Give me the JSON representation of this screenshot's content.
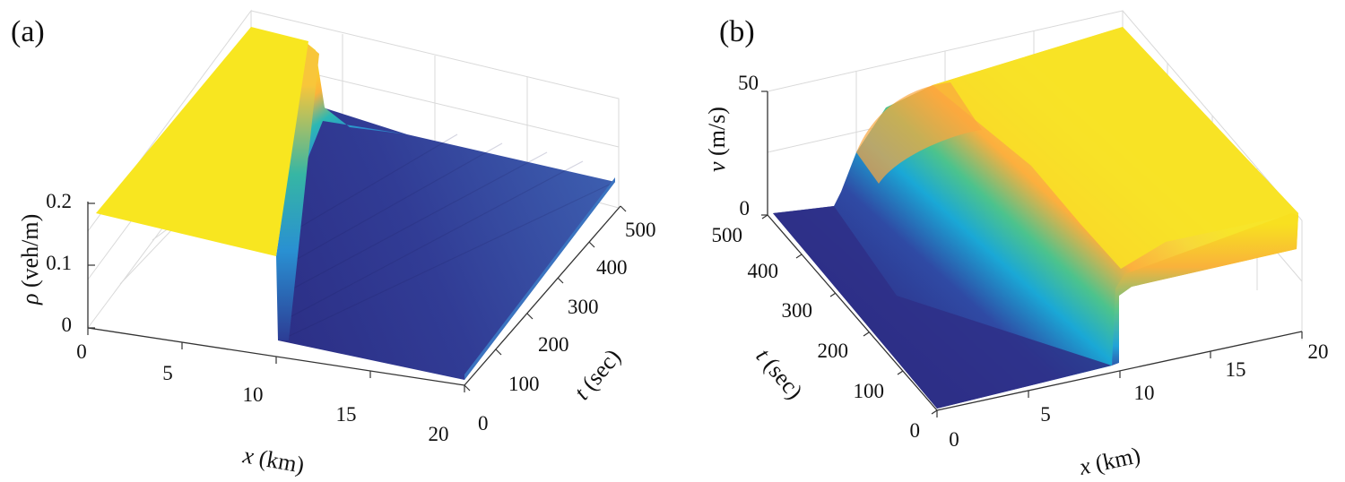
{
  "chart_data": [
    {
      "type": "surface3d",
      "panel_label": "(a)",
      "xlabel": {
        "sym": "x",
        "unit": " (km)"
      },
      "ylabel": {
        "sym": "t",
        "unit": " (sec)"
      },
      "zlabel": {
        "sym": "ρ",
        "unit": " (veh/m)"
      },
      "x_ticks": [
        "0",
        "5",
        "10",
        "15",
        "20"
      ],
      "t_ticks": [
        "0",
        "100",
        "200",
        "300",
        "400",
        "500"
      ],
      "z_ticks": [
        "0",
        "0.1",
        "0.2"
      ],
      "xlim": [
        0,
        20
      ],
      "tlim": [
        0,
        500
      ],
      "zlim": [
        0,
        0.2
      ],
      "surface": {
        "description_of_values": "density: 0.18 veh/m for x < ~10 km (queue), drops sharply at x ≈ 10 km to ≈0.01 veh/m downstream",
        "upstream_value": 0.18,
        "downstream_value": 0.01,
        "discontinuity_x": 10
      },
      "colors": {
        "high": "#f8e620",
        "low": "#2d3b8f"
      }
    },
    {
      "type": "surface3d",
      "panel_label": "(b)",
      "xlabel": {
        "sym": "x",
        "unit": " (km)"
      },
      "ylabel": {
        "sym": "t",
        "unit": " (sec)"
      },
      "zlabel": {
        "sym": "v",
        "unit": " (m/s)"
      },
      "x_ticks": [
        "0",
        "5",
        "10",
        "15",
        "20"
      ],
      "t_ticks": [
        "0",
        "100",
        "200",
        "300",
        "400",
        "500"
      ],
      "z_ticks": [
        "0",
        "50"
      ],
      "xlim": [
        0,
        20
      ],
      "tlim": [
        0,
        500
      ],
      "zlim": [
        0,
        50
      ],
      "surface": {
        "description_of_values": "velocity: ≈0 m/s for x < ~10 km, rising to ≈40 m/s downstream; rarefaction fan spreading upstream over time",
        "upstream_value": 0,
        "downstream_value": 40,
        "discontinuity_x": 10
      },
      "colors": {
        "high": "#f8e620",
        "low": "#2d3b8f"
      }
    }
  ]
}
